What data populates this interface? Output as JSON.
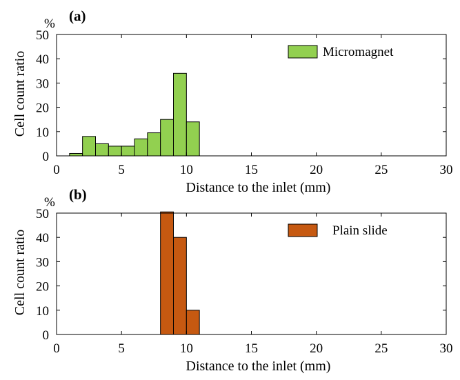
{
  "chart_data": [
    {
      "type": "bar",
      "panel_label": "(a)",
      "unit_label": "%",
      "xlabel": "Distance to the inlet (mm)",
      "ylabel": "Cell count ratio",
      "xlim": [
        0,
        30
      ],
      "ylim": [
        0,
        50
      ],
      "xticks": [
        "0",
        "5",
        "10",
        "15",
        "20",
        "25",
        "30"
      ],
      "yticks": [
        "0",
        "10",
        "20",
        "30",
        "40",
        "50"
      ],
      "legend": "top-right",
      "grid": false,
      "series": [
        {
          "name": "Micromagnet",
          "color": "#92d050",
          "bin_width": 1,
          "bins": [
            {
              "x": 1.5,
              "value": 1
            },
            {
              "x": 2.5,
              "value": 8
            },
            {
              "x": 3.5,
              "value": 5
            },
            {
              "x": 4.5,
              "value": 4
            },
            {
              "x": 5.5,
              "value": 4
            },
            {
              "x": 6.5,
              "value": 7
            },
            {
              "x": 7.5,
              "value": 9.5
            },
            {
              "x": 8.5,
              "value": 15
            },
            {
              "x": 9.5,
              "value": 34
            },
            {
              "x": 10.5,
              "value": 14
            }
          ]
        }
      ]
    },
    {
      "type": "bar",
      "panel_label": "(b)",
      "unit_label": "%",
      "xlabel": "Distance to the inlet (mm)",
      "ylabel": "Cell count ratio",
      "xlim": [
        0,
        30
      ],
      "ylim": [
        0,
        50
      ],
      "xticks": [
        "0",
        "5",
        "10",
        "15",
        "20",
        "25",
        "30"
      ],
      "yticks": [
        "0",
        "10",
        "20",
        "30",
        "40",
        "50"
      ],
      "legend": "top-right",
      "grid": false,
      "series": [
        {
          "name": "Plain slide",
          "color": "#c65911",
          "bin_width": 1,
          "bins": [
            {
              "x": 8.5,
              "value": 50.5
            },
            {
              "x": 9.5,
              "value": 40
            },
            {
              "x": 10.5,
              "value": 10
            }
          ]
        }
      ]
    }
  ]
}
